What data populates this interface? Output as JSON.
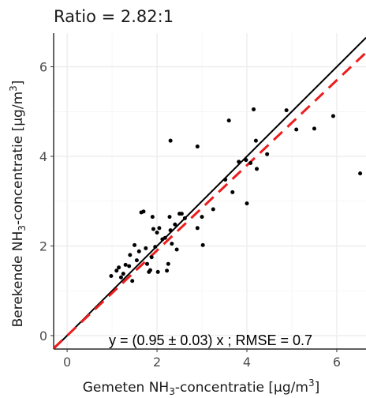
{
  "chart_data": {
    "type": "scatter",
    "title": "Ratio = 2.82:1",
    "xlabel_main": "Gemeten NH",
    "xlabel_sub": "3",
    "xlabel_rest": "-concentratie [µg/m",
    "xlabel_sup": "3",
    "xlabel_end": "]",
    "ylabel_main": "Berekende NH",
    "ylabel_sub": "3",
    "ylabel_rest": "-concentratie [µg/m",
    "ylabel_sup": "3",
    "ylabel_end": "]",
    "annotation": "y = (0.95 ± 0.03) x ; RMSE = 0.7",
    "xlim": [
      -0.3,
      6.65
    ],
    "ylim": [
      -0.3,
      6.75
    ],
    "xticks": [
      0,
      2,
      4,
      6
    ],
    "xtick_labels": [
      "0",
      "2",
      "4",
      "6"
    ],
    "yticks": [
      0,
      2,
      4,
      6
    ],
    "ytick_labels": [
      "0",
      "2",
      "4",
      "6"
    ],
    "grid": true,
    "identity_line": {
      "slope": 1,
      "color": "#000000"
    },
    "fit_line": {
      "slope": 0.95,
      "color": "#ee1c1c",
      "style": "dashed"
    },
    "point_color": "#000000",
    "points": [
      [
        0.98,
        1.33
      ],
      [
        1.1,
        1.45
      ],
      [
        1.15,
        1.52
      ],
      [
        1.2,
        1.3
      ],
      [
        1.25,
        1.38
      ],
      [
        1.3,
        1.58
      ],
      [
        1.38,
        1.55
      ],
      [
        1.4,
        1.8
      ],
      [
        1.45,
        1.22
      ],
      [
        1.5,
        2.02
      ],
      [
        1.55,
        1.68
      ],
      [
        1.6,
        1.88
      ],
      [
        1.65,
        2.75
      ],
      [
        1.7,
        2.77
      ],
      [
        1.75,
        1.95
      ],
      [
        1.78,
        1.6
      ],
      [
        1.82,
        1.42
      ],
      [
        1.85,
        1.46
      ],
      [
        1.88,
        1.75
      ],
      [
        1.92,
        2.38
      ],
      [
        1.96,
        1.98
      ],
      [
        2.0,
        2.3
      ],
      [
        2.02,
        1.42
      ],
      [
        2.05,
        2.4
      ],
      [
        2.12,
        2.15
      ],
      [
        2.18,
        2.18
      ],
      [
        2.22,
        1.45
      ],
      [
        2.25,
        1.6
      ],
      [
        2.28,
        2.65
      ],
      [
        2.3,
        2.35
      ],
      [
        2.33,
        2.05
      ],
      [
        2.4,
        2.48
      ],
      [
        2.44,
        1.92
      ],
      [
        2.5,
        2.72
      ],
      [
        2.55,
        2.72
      ],
      [
        2.62,
        2.62
      ],
      [
        1.9,
        2.65
      ],
      [
        2.3,
        4.35
      ],
      [
        2.9,
        4.22
      ],
      [
        2.9,
        2.4
      ],
      [
        3.0,
        2.65
      ],
      [
        3.02,
        2.02
      ],
      [
        3.25,
        2.82
      ],
      [
        3.52,
        3.48
      ],
      [
        3.6,
        4.8
      ],
      [
        3.68,
        3.2
      ],
      [
        3.82,
        3.88
      ],
      [
        3.98,
        3.92
      ],
      [
        4.0,
        2.95
      ],
      [
        4.08,
        3.85
      ],
      [
        4.15,
        5.05
      ],
      [
        4.2,
        4.35
      ],
      [
        4.22,
        3.72
      ],
      [
        4.45,
        4.05
      ],
      [
        4.88,
        5.03
      ],
      [
        5.1,
        4.6
      ],
      [
        5.5,
        4.62
      ],
      [
        5.92,
        4.9
      ],
      [
        6.52,
        3.62
      ]
    ]
  }
}
